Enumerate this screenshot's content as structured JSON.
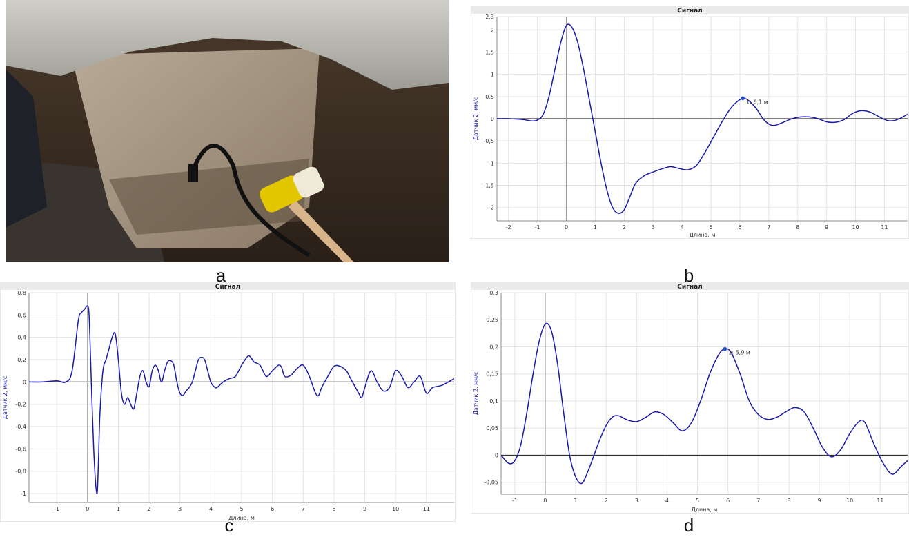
{
  "captions": {
    "a": "a",
    "b": "b",
    "c": "c",
    "d": "d"
  },
  "photo": {
    "description_icon": "photo-pile-with-sensor-and-mallet-icon"
  },
  "charts_meta": {
    "line_color": "#1a1aa8",
    "grid_color": "#e3e3e3",
    "title_bar_color": "#eaeaea",
    "marker_color": "#1f4fc8"
  },
  "chart_data": [
    {
      "id": "b",
      "type": "line",
      "title": "Сигнал",
      "xlabel": "Длина, м",
      "ylabel": "Датчик 2, мм/с",
      "xlim": [
        -2.4,
        11.8
      ],
      "ylim": [
        -2.3,
        2.3
      ],
      "xticks": [
        -2,
        -1,
        0,
        1,
        2,
        3,
        4,
        5,
        6,
        7,
        8,
        9,
        10,
        11
      ],
      "xtick_labels": [
        "-2",
        "-1",
        "0",
        "1",
        "2",
        "3",
        "4",
        "5",
        "6",
        "7",
        "8",
        "9",
        "10",
        "11"
      ],
      "yticks": [
        2.3,
        2,
        1.5,
        1,
        0.5,
        0,
        -0.5,
        -1,
        -1.5,
        -2
      ],
      "ytick_labels": [
        "2,3",
        "2",
        "1,5",
        "1",
        "0,5",
        "0",
        "-0,5",
        "-1",
        "-1,5",
        "-2"
      ],
      "grid": true,
      "marker": {
        "x": 6.1,
        "y": 0.46,
        "label": "1: 6,1 м"
      },
      "series": [
        {
          "x": [
            -2.4,
            -2.0,
            -1.5,
            -1.2,
            -1.0,
            -0.8,
            -0.6,
            -0.4,
            -0.2,
            0.0,
            0.2,
            0.4,
            0.6,
            0.8,
            1.0,
            1.2,
            1.4,
            1.6,
            1.8,
            2.0,
            2.2,
            2.4,
            2.7,
            3.0,
            3.3,
            3.6,
            3.9,
            4.2,
            4.5,
            4.8,
            5.1,
            5.4,
            5.7,
            6.0,
            6.2,
            6.4,
            6.6,
            6.8,
            7.0,
            7.2,
            7.5,
            7.8,
            8.1,
            8.4,
            8.7,
            9.0,
            9.3,
            9.6,
            9.9,
            10.2,
            10.5,
            10.8,
            11.1,
            11.4,
            11.8
          ],
          "y": [
            0,
            0,
            -0.02,
            -0.05,
            -0.03,
            0.1,
            0.5,
            1.1,
            1.7,
            2.1,
            2.05,
            1.7,
            1.1,
            0.4,
            -0.3,
            -1.0,
            -1.6,
            -2.0,
            -2.13,
            -2.05,
            -1.75,
            -1.45,
            -1.28,
            -1.2,
            -1.13,
            -1.08,
            -1.12,
            -1.15,
            -1.05,
            -0.75,
            -0.4,
            -0.05,
            0.25,
            0.43,
            0.45,
            0.35,
            0.2,
            0.0,
            -0.12,
            -0.15,
            -0.08,
            0.0,
            0.04,
            0.04,
            0.0,
            -0.07,
            -0.08,
            -0.02,
            0.12,
            0.18,
            0.15,
            0.05,
            -0.04,
            -0.03,
            0.1
          ]
        }
      ]
    },
    {
      "id": "c",
      "type": "line",
      "title": "Сигнал",
      "xlabel": "Длина, м",
      "ylabel": "Датчик 2, мм/с",
      "xlim": [
        -1.9,
        11.9
      ],
      "ylim": [
        -1.08,
        0.8
      ],
      "xticks": [
        -1,
        0,
        1,
        2,
        3,
        4,
        5,
        6,
        7,
        8,
        9,
        10,
        11
      ],
      "xtick_labels": [
        "-1",
        "0",
        "1",
        "2",
        "3",
        "4",
        "5",
        "6",
        "7",
        "8",
        "9",
        "10",
        "11"
      ],
      "yticks": [
        0.8,
        0.6,
        0.4,
        0.2,
        0,
        -0.2,
        -0.4,
        -0.6,
        -0.8,
        -1
      ],
      "ytick_labels": [
        "0,8",
        "0,6",
        "0,4",
        "0,2",
        "0",
        "-0,2",
        "-0,4",
        "-0,6",
        "-0,8",
        "-1"
      ],
      "grid": true,
      "series": [
        {
          "x": [
            -1.9,
            -1.5,
            -1.0,
            -0.7,
            -0.5,
            -0.3,
            -0.2,
            -0.1,
            0.0,
            0.05,
            0.1,
            0.2,
            0.3,
            0.35,
            0.4,
            0.5,
            0.6,
            0.7,
            0.8,
            0.9,
            1.0,
            1.1,
            1.2,
            1.3,
            1.4,
            1.5,
            1.6,
            1.7,
            1.8,
            1.9,
            2.0,
            2.1,
            2.2,
            2.3,
            2.4,
            2.5,
            2.6,
            2.7,
            2.8,
            2.9,
            3.0,
            3.1,
            3.2,
            3.3,
            3.4,
            3.5,
            3.6,
            3.7,
            3.8,
            3.9,
            4.0,
            4.1,
            4.2,
            4.4,
            4.6,
            4.8,
            5.0,
            5.2,
            5.3,
            5.4,
            5.6,
            5.8,
            6.0,
            6.2,
            6.3,
            6.4,
            6.6,
            6.8,
            7.0,
            7.2,
            7.4,
            7.5,
            7.6,
            7.8,
            8.0,
            8.2,
            8.4,
            8.5,
            8.6,
            8.8,
            8.9,
            9.0,
            9.2,
            9.4,
            9.6,
            9.8,
            10.0,
            10.2,
            10.4,
            10.6,
            10.8,
            11.0,
            11.2,
            11.5,
            11.9
          ],
          "y": [
            0,
            0,
            0.01,
            0.0,
            0.1,
            0.55,
            0.62,
            0.65,
            0.68,
            0.6,
            0.2,
            -0.6,
            -1.0,
            -0.75,
            -0.3,
            0.1,
            0.2,
            0.3,
            0.4,
            0.43,
            0.2,
            -0.1,
            -0.2,
            -0.14,
            -0.2,
            -0.24,
            -0.1,
            0.05,
            0.1,
            0.0,
            -0.04,
            0.1,
            0.15,
            0.1,
            0.0,
            0.1,
            0.18,
            0.19,
            0.15,
            0.0,
            -0.1,
            -0.12,
            -0.08,
            -0.05,
            0.0,
            0.1,
            0.2,
            0.22,
            0.2,
            0.1,
            0.0,
            -0.04,
            -0.05,
            0.0,
            0.03,
            0.05,
            0.15,
            0.23,
            0.22,
            0.18,
            0.15,
            0.05,
            0.1,
            0.15,
            0.13,
            0.05,
            0.06,
            0.12,
            0.15,
            0.05,
            -0.1,
            -0.12,
            -0.05,
            0.05,
            0.14,
            0.14,
            0.1,
            0.05,
            0.0,
            -0.1,
            -0.14,
            -0.05,
            0.1,
            0.0,
            -0.08,
            -0.05,
            0.1,
            0.05,
            -0.05,
            0.0,
            0.05,
            -0.1,
            -0.05,
            -0.03,
            0.03
          ]
        }
      ]
    },
    {
      "id": "d",
      "type": "line",
      "title": "Сигнал",
      "xlabel": "Длина, м",
      "ylabel": "Датчик 2, мм/с",
      "xlim": [
        -1.45,
        11.9
      ],
      "ylim": [
        -0.072,
        0.3
      ],
      "xticks": [
        -1,
        0,
        1,
        2,
        3,
        4,
        5,
        6,
        7,
        8,
        9,
        10,
        11
      ],
      "xtick_labels": [
        "-1",
        "0",
        "1",
        "2",
        "3",
        "4",
        "5",
        "6",
        "7",
        "8",
        "9",
        "10",
        "11"
      ],
      "yticks": [
        0.3,
        0.25,
        0.2,
        0.15,
        0.1,
        0.05,
        0,
        -0.05
      ],
      "ytick_labels": [
        "0,3",
        "0,25",
        "0,2",
        "0,15",
        "0,1",
        "0,05",
        "0",
        "-0,05"
      ],
      "grid": true,
      "marker": {
        "x": 5.9,
        "y": 0.196,
        "label": "1: 5,9 м"
      },
      "series": [
        {
          "x": [
            -1.45,
            -1.2,
            -1.0,
            -0.8,
            -0.6,
            -0.4,
            -0.2,
            0.0,
            0.2,
            0.4,
            0.6,
            0.8,
            1.0,
            1.2,
            1.4,
            1.6,
            1.8,
            2.0,
            2.2,
            2.4,
            2.7,
            3.0,
            3.3,
            3.6,
            3.9,
            4.2,
            4.5,
            4.8,
            5.1,
            5.4,
            5.7,
            5.9,
            6.1,
            6.4,
            6.7,
            7.0,
            7.3,
            7.6,
            7.9,
            8.2,
            8.5,
            8.8,
            9.1,
            9.4,
            9.7,
            10.0,
            10.3,
            10.5,
            10.8,
            11.1,
            11.4,
            11.7,
            11.9
          ],
          "y": [
            0,
            -0.015,
            -0.01,
            0.02,
            0.08,
            0.15,
            0.21,
            0.242,
            0.23,
            0.17,
            0.08,
            0.0,
            -0.04,
            -0.052,
            -0.03,
            0.0,
            0.03,
            0.055,
            0.07,
            0.073,
            0.065,
            0.062,
            0.07,
            0.08,
            0.075,
            0.06,
            0.045,
            0.06,
            0.1,
            0.15,
            0.186,
            0.196,
            0.19,
            0.15,
            0.1,
            0.075,
            0.066,
            0.07,
            0.08,
            0.088,
            0.08,
            0.05,
            0.015,
            -0.003,
            0.01,
            0.04,
            0.062,
            0.06,
            0.02,
            -0.015,
            -0.035,
            -0.02,
            -0.01
          ]
        }
      ]
    }
  ]
}
